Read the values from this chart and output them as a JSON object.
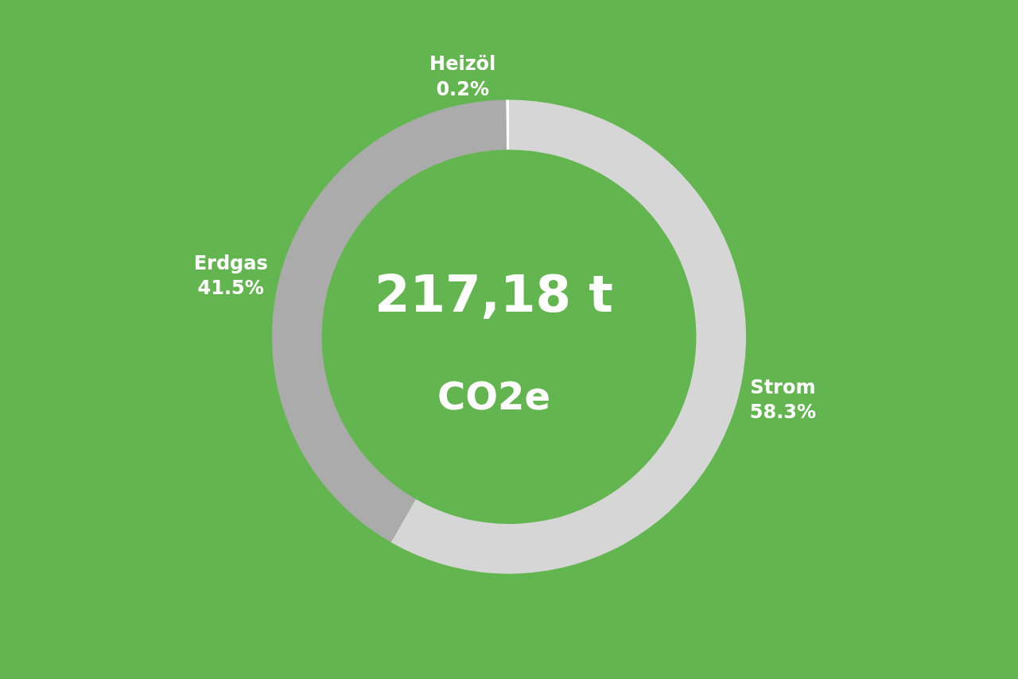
{
  "chart_data": {
    "type": "donut",
    "categories": [
      "Strom",
      "Erdgas",
      "Heizöl"
    ],
    "values": [
      58.3,
      41.5,
      0.2
    ],
    "value_labels": [
      "58.3%",
      "41.5%",
      "0.2%"
    ],
    "colors": [
      "#d6d6d6",
      "#ababab",
      "#ffffff"
    ],
    "annotations": [
      "217,18 t",
      "CO2e"
    ]
  }
}
